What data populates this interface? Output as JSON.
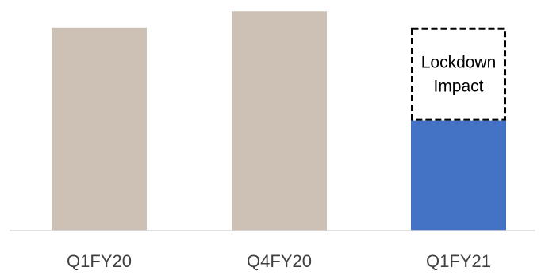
{
  "chart_data": {
    "type": "bar",
    "categories": [
      "Q1FY20",
      "Q4FY20",
      "Q1FY21"
    ],
    "values": [
      100,
      108,
      54
    ],
    "ylim": [
      0,
      112
    ],
    "grid": false,
    "legend": "none",
    "colors": [
      "#cdc1b5",
      "#cdc1b5",
      "#4472c4"
    ],
    "annotation": {
      "category": "Q1FY21",
      "from": 54,
      "to": 100,
      "style": "dashed-box",
      "label_lines": [
        "Lockdown",
        "Impact"
      ]
    }
  }
}
